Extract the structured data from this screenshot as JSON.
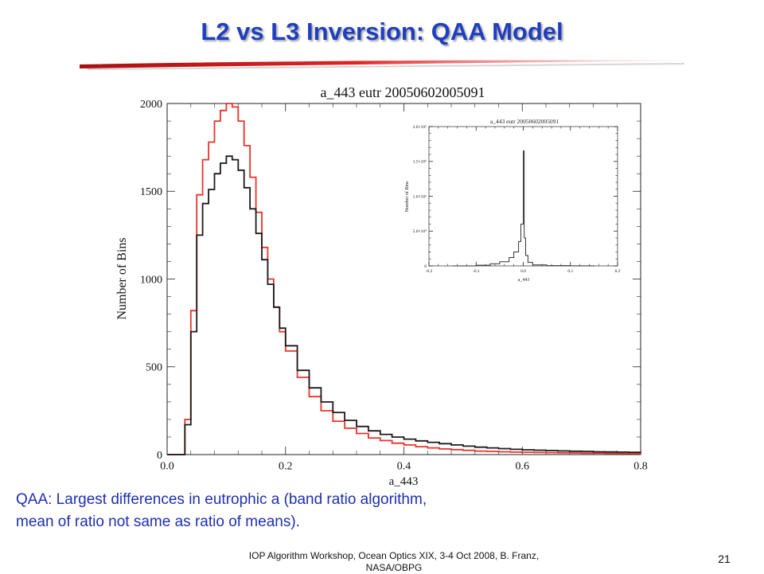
{
  "slide": {
    "title": "L2 vs L3 Inversion: QAA Model",
    "caption_lines": [
      "QAA: Largest differences in eutrophic a (band ratio algorithm,",
      "mean of ratio not same as ratio of means)."
    ],
    "footer": "IOP Algorithm Workshop, Ocean Optics XIX, 3-4 Oct 2008, B. Franz, NASA/OBPG",
    "slide_number": "21",
    "colors": {
      "title": "#1f3fbf",
      "caption": "#1f2fb0",
      "rule": "#d42020"
    }
  },
  "chart_data": [
    {
      "type": "line",
      "title": "a_443 eutr 20050602005091",
      "xlabel": "a_443",
      "ylabel": "Number of Bins",
      "xlim": [
        0.0,
        0.8
      ],
      "ylim": [
        0,
        2000
      ],
      "xticks": [
        "0.0",
        "0.2",
        "0.4",
        "0.6",
        "0.8"
      ],
      "yticks": [
        "0",
        "500",
        "1000",
        "1500",
        "2000"
      ],
      "grid": false,
      "series": [
        {
          "color": "#e8342c",
          "x": [
            0.0,
            0.02,
            0.03,
            0.04,
            0.05,
            0.06,
            0.07,
            0.08,
            0.09,
            0.1,
            0.11,
            0.12,
            0.13,
            0.14,
            0.15,
            0.16,
            0.17,
            0.18,
            0.19,
            0.2,
            0.22,
            0.24,
            0.26,
            0.28,
            0.3,
            0.32,
            0.34,
            0.36,
            0.38,
            0.4,
            0.42,
            0.44,
            0.46,
            0.48,
            0.5,
            0.52,
            0.54,
            0.56,
            0.58,
            0.6,
            0.62,
            0.64,
            0.66,
            0.68,
            0.7,
            0.72,
            0.74,
            0.76,
            0.78,
            0.8
          ],
          "y": [
            0,
            0,
            200,
            820,
            1480,
            1680,
            1780,
            1900,
            1960,
            2000,
            1980,
            1900,
            1760,
            1580,
            1380,
            1180,
            1000,
            840,
            700,
            590,
            440,
            330,
            250,
            190,
            150,
            120,
            95,
            80,
            65,
            55,
            45,
            38,
            32,
            28,
            24,
            20,
            18,
            16,
            14,
            13,
            12,
            11,
            10,
            9,
            8,
            8,
            7,
            6,
            6,
            5
          ]
        },
        {
          "color": "#1a1a1a",
          "x": [
            0.0,
            0.02,
            0.03,
            0.04,
            0.05,
            0.06,
            0.07,
            0.08,
            0.09,
            0.1,
            0.11,
            0.12,
            0.13,
            0.14,
            0.15,
            0.16,
            0.17,
            0.18,
            0.19,
            0.2,
            0.22,
            0.24,
            0.26,
            0.28,
            0.3,
            0.32,
            0.34,
            0.36,
            0.38,
            0.4,
            0.42,
            0.44,
            0.46,
            0.48,
            0.5,
            0.52,
            0.54,
            0.56,
            0.58,
            0.6,
            0.62,
            0.64,
            0.66,
            0.68,
            0.7,
            0.72,
            0.74,
            0.76,
            0.78,
            0.8
          ],
          "y": [
            0,
            0,
            170,
            700,
            1250,
            1430,
            1510,
            1600,
            1660,
            1700,
            1680,
            1620,
            1520,
            1400,
            1260,
            1110,
            970,
            840,
            720,
            620,
            480,
            380,
            300,
            240,
            195,
            160,
            135,
            115,
            100,
            88,
            78,
            70,
            62,
            55,
            48,
            42,
            38,
            34,
            30,
            27,
            25,
            23,
            21,
            19,
            18,
            16,
            15,
            14,
            13,
            12
          ]
        }
      ]
    },
    {
      "type": "line",
      "title": "a_443 eutr 20050602005091",
      "xlabel": "a_443",
      "ylabel": "Number of Bins",
      "xlim": [
        -0.2,
        0.2
      ],
      "ylim": [
        0,
        200000
      ],
      "xticks": [
        "-0.2",
        "-0.1",
        "0.0",
        "0.1",
        "0.2"
      ],
      "yticks": [
        "0",
        "5.0×10⁴",
        "1.0×10⁵",
        "1.5×10⁵",
        "2.0×10⁵"
      ],
      "grid": false,
      "series": [
        {
          "color": "#333333",
          "x": [
            -0.15,
            -0.1,
            -0.07,
            -0.05,
            -0.03,
            -0.02,
            -0.01,
            -0.005,
            0.0,
            0.002,
            0.005,
            0.01,
            0.02,
            0.05,
            0.1,
            0.15
          ],
          "y": [
            0,
            1000,
            3000,
            6000,
            12000,
            20000,
            35000,
            60000,
            165000,
            40000,
            15000,
            5000,
            1500,
            400,
            100,
            0
          ]
        }
      ]
    }
  ]
}
